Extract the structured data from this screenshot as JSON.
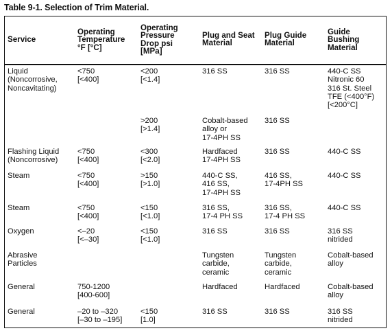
{
  "title": "Table 9-1. Selection of Trim Material.",
  "headers": [
    "Service",
    "Operating\nTemperature\n°F [°C]",
    "Operating\nPressure\nDrop psi\n[MPa]",
    "Plug and Seat\nMaterial",
    "Plug Guide\nMaterial",
    "Guide\nBushing\nMaterial"
  ],
  "rows": [
    [
      "Liquid\n(Noncorrosive,\nNoncavitating)",
      "<750\n[<400]",
      "<200\n[<1.4]",
      "316 SS",
      "316 SS",
      "440-C SS\nNitronic 60\n316 St. Steel\nTFE (<400°F)\n[<200°C]"
    ],
    [
      "",
      "",
      ">200\n[>1.4]",
      "Cobalt-based\nalloy or\n17-4PH SS",
      "316 SS",
      ""
    ],
    [
      "Flashing Liquid\n(Noncorrosive)",
      "<750\n[<400]",
      "<300\n[<2.0]",
      "Hardfaced\n17-4PH SS",
      "316 SS",
      "440-C SS"
    ],
    [
      "Steam",
      "<750\n[<400]",
      ">150\n[>1.0]",
      "440-C SS,\n416 SS,\n17-4PH SS",
      "416 SS,\n17-4PH SS",
      "440-C SS"
    ],
    [
      "Steam",
      "<750\n[<400]",
      "<150\n[<1.0]",
      "316 SS,\n17-4 PH SS",
      "316 SS,\n17-4 PH SS",
      "440-C SS"
    ],
    [
      "Oxygen",
      "<–20\n[<–30]",
      "<150\n[<1.0]",
      "316 SS",
      "316 SS",
      "316 SS\nnitrided"
    ],
    [
      "Abrasive\nParticles",
      "",
      "",
      "Tungsten\ncarbide,\nceramic",
      "Tungsten\ncarbide,\nceramic",
      "Cobalt-based\nalloy"
    ],
    [
      "General",
      "750-1200\n[400-600]",
      "",
      "Hardfaced",
      "Hardfaced",
      "Cobalt-based\nalloy"
    ],
    [
      "General",
      "–20 to –320\n[–30 to –195]",
      "<150\n[1.0]",
      "316 SS",
      "316 SS",
      "316 SS\nnitrided"
    ]
  ]
}
